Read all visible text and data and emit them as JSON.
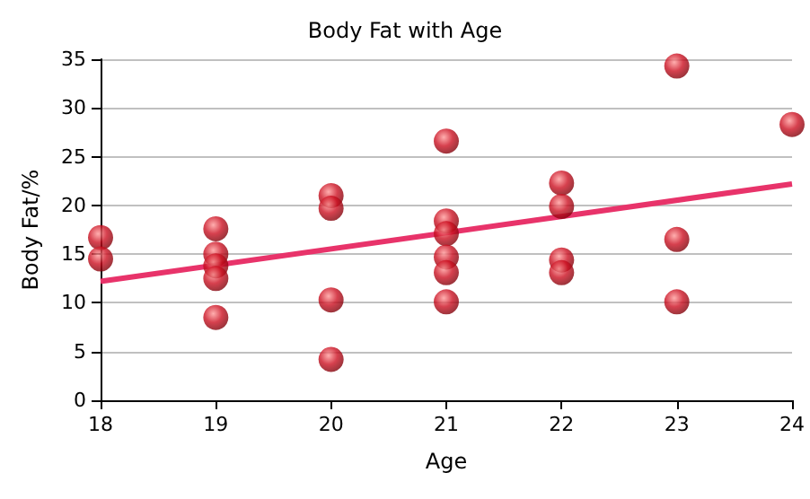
{
  "chart_data": {
    "type": "scatter",
    "title": "Body Fat with Age",
    "xlabel": "Age",
    "ylabel": "Body Fat/%",
    "marker": "circle",
    "grid": "y",
    "xlim": [
      18,
      24
    ],
    "xticks": [
      18,
      19,
      20,
      21,
      22,
      23,
      24
    ],
    "ylim": [
      0,
      35
    ],
    "yticks": [
      0,
      5,
      10,
      15,
      20,
      25,
      30,
      35
    ],
    "series": [
      {
        "color": "#cc1122",
        "x": [
          18,
          18,
          19,
          19,
          19,
          19,
          19,
          20,
          20,
          20,
          20,
          21,
          21,
          21,
          21,
          21,
          21,
          22,
          22,
          22,
          22,
          23,
          23,
          23,
          24
        ],
        "values": [
          16.7,
          14.5,
          17.6,
          15,
          13.8,
          12.5,
          8.5,
          21,
          19.7,
          10.3,
          4.2,
          26.6,
          18.4,
          17.1,
          14.7,
          13.1,
          10.1,
          22.3,
          19.9,
          14.4,
          13.1,
          34.3,
          16.5,
          10.1,
          28.3
        ]
      },
      {
        "type": "line",
        "color": "#e8336a",
        "x": [
          18,
          24
        ],
        "values": [
          12.2,
          22.2
        ],
        "marker": "none"
      }
    ]
  }
}
